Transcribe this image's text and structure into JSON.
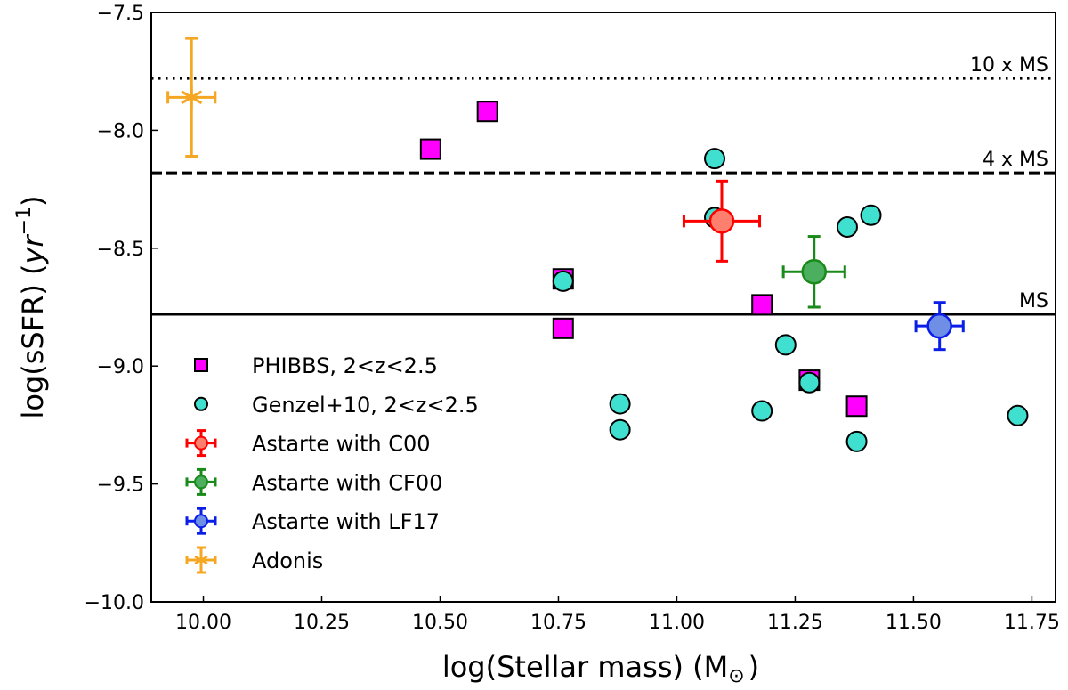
{
  "chart_data": {
    "type": "scatter",
    "xlabel": "log(Stellar mass)  (M",
    "xlabel_sub": "⊙",
    "xlabel_end": ")",
    "ylabel": "log(sSFR)  (",
    "ylabel_unit": "yr",
    "ylabel_exp": "−1",
    "ylabel_end": ")",
    "xlim": [
      9.89,
      11.8
    ],
    "ylim": [
      -10.0,
      -7.5
    ],
    "xticks": [
      10.0,
      10.25,
      10.5,
      10.75,
      11.0,
      11.25,
      11.5,
      11.75
    ],
    "xtick_labels": [
      "10.00",
      "10.25",
      "10.50",
      "10.75",
      "11.00",
      "11.25",
      "11.50",
      "11.75"
    ],
    "yticks": [
      -10.0,
      -9.5,
      -9.0,
      -8.5,
      -8.0,
      -7.5
    ],
    "ytick_labels": [
      "−10.0",
      "−9.5",
      "−9.0",
      "−8.5",
      "−8.0",
      "−7.5"
    ],
    "reference_lines": [
      {
        "name": "ms",
        "label": "MS",
        "y": -8.78,
        "style": "solid"
      },
      {
        "name": "4ms",
        "label": "4 x MS",
        "y": -8.18,
        "style": "dashed"
      },
      {
        "name": "10ms",
        "label": "10 x MS",
        "y": -7.78,
        "style": "dotted"
      }
    ],
    "series": [
      {
        "name": "PHIBBS, 2<z<2.5",
        "marker": "square",
        "color": "#ff00ff",
        "points": [
          {
            "x": 10.48,
            "y": -8.08
          },
          {
            "x": 10.6,
            "y": -7.92
          },
          {
            "x": 10.76,
            "y": -8.63
          },
          {
            "x": 10.76,
            "y": -8.84
          },
          {
            "x": 11.18,
            "y": -8.74
          },
          {
            "x": 11.28,
            "y": -9.06
          },
          {
            "x": 11.38,
            "y": -9.17
          }
        ]
      },
      {
        "name": "Genzel+10, 2<z<2.5",
        "marker": "circle",
        "color": "#40e0d0",
        "points": [
          {
            "x": 10.76,
            "y": -8.64
          },
          {
            "x": 10.88,
            "y": -9.16
          },
          {
            "x": 10.88,
            "y": -9.27
          },
          {
            "x": 11.08,
            "y": -8.12
          },
          {
            "x": 11.08,
            "y": -8.37
          },
          {
            "x": 11.18,
            "y": -9.19
          },
          {
            "x": 11.23,
            "y": -8.91
          },
          {
            "x": 11.28,
            "y": -9.07
          },
          {
            "x": 11.36,
            "y": -8.41
          },
          {
            "x": 11.38,
            "y": -9.32
          },
          {
            "x": 11.41,
            "y": -8.36
          },
          {
            "x": 11.72,
            "y": -9.21
          }
        ]
      },
      {
        "name": "Astarte with C00",
        "marker": "errcircle",
        "color": "#ff0000",
        "fill": "#ff7f6e",
        "points": [
          {
            "x": 11.095,
            "y": -8.385,
            "xerr": 0.08,
            "yerr": 0.17
          }
        ]
      },
      {
        "name": "Astarte with CF00",
        "marker": "errcircle",
        "color": "#1a8a1a",
        "fill": "#4caf60",
        "points": [
          {
            "x": 11.29,
            "y": -8.6,
            "xerr": 0.065,
            "yerr": 0.15
          }
        ]
      },
      {
        "name": "Astarte with LF17",
        "marker": "errcircle",
        "color": "#0a1ee8",
        "fill": "#6f8fe6",
        "points": [
          {
            "x": 11.555,
            "y": -8.83,
            "xerr": 0.05,
            "yerr": 0.1
          }
        ]
      },
      {
        "name": "Adonis",
        "marker": "errstar",
        "color": "#f5a623",
        "points": [
          {
            "x": 9.975,
            "y": -7.86,
            "xerr": 0.05,
            "yerr": 0.25
          }
        ]
      }
    ],
    "legend": "lower-left"
  }
}
